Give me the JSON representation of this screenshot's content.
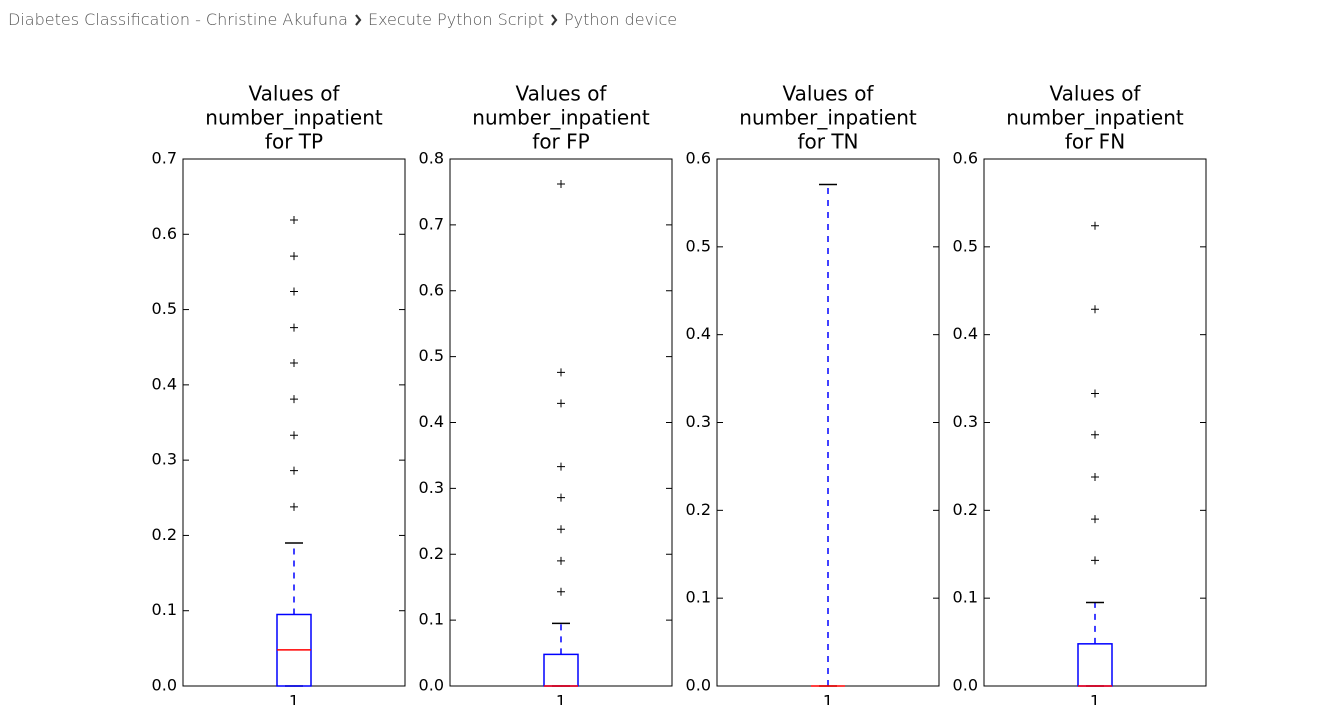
{
  "breadcrumb": [
    "Diabetes Classification - Christine Akufuna",
    "Execute Python Script",
    "Python device"
  ],
  "chart_data": [
    {
      "type": "box",
      "title": [
        "Values of",
        "number_inpatient",
        "for TP"
      ],
      "categories": [
        "1"
      ],
      "boxes": [
        {
          "q1": 0,
          "median": 0.048,
          "q3": 0.095,
          "whisker_low": 0,
          "whisker_high": 0.19,
          "outliers": [
            0.238,
            0.286,
            0.333,
            0.381,
            0.429,
            0.476,
            0.524,
            0.571,
            0.619
          ]
        }
      ],
      "ylim": [
        0,
        0.7
      ],
      "yticks": [
        {
          "value": 0,
          "label": "0.0"
        },
        0.1,
        0.2,
        0.3,
        0.4,
        0.5,
        0.6,
        0.7
      ],
      "box_color": "#0000ff",
      "median_color": "#ff0000",
      "flier_color": "#000000"
    },
    {
      "type": "box",
      "title": [
        "Values of",
        "number_inpatient",
        "for FP"
      ],
      "categories": [
        "1"
      ],
      "boxes": [
        {
          "q1": 0,
          "median": 0,
          "q3": 0.048,
          "whisker_low": 0,
          "whisker_high": 0.095,
          "outliers": [
            0.143,
            0.19,
            0.238,
            0.286,
            0.333,
            0.429,
            0.476,
            0.762
          ]
        }
      ],
      "ylim": [
        0,
        0.8
      ],
      "yticks": [
        {
          "value": 0,
          "label": "0.0"
        },
        0.1,
        0.2,
        0.3,
        0.4,
        0.5,
        0.6,
        0.7,
        0.8
      ],
      "box_color": "#0000ff",
      "median_color": "#ff0000",
      "flier_color": "#000000"
    },
    {
      "type": "box",
      "title": [
        "Values of",
        "number_inpatient",
        "for TN"
      ],
      "categories": [
        "1"
      ],
      "boxes": [
        {
          "q1": 0,
          "median": 0,
          "q3": 0,
          "whisker_low": 0,
          "whisker_high": 0.571,
          "outliers": []
        }
      ],
      "ylim": [
        0,
        0.6
      ],
      "yticks": [
        {
          "value": 0,
          "label": "0.0"
        },
        0.1,
        0.2,
        0.3,
        0.4,
        0.5,
        0.6
      ],
      "box_color": "#0000ff",
      "median_color": "#ff0000",
      "flier_color": "#000000"
    },
    {
      "type": "box",
      "title": [
        "Values of",
        "number_inpatient",
        "for FN"
      ],
      "categories": [
        "1"
      ],
      "boxes": [
        {
          "q1": 0,
          "median": 0,
          "q3": 0.048,
          "whisker_low": 0,
          "whisker_high": 0.095,
          "outliers": [
            0.143,
            0.19,
            0.238,
            0.286,
            0.333,
            0.429,
            0.524
          ]
        }
      ],
      "ylim": [
        0,
        0.6
      ],
      "yticks": [
        {
          "value": 0,
          "label": "0.0"
        },
        0.1,
        0.2,
        0.3,
        0.4,
        0.5,
        0.6
      ],
      "box_color": "#0000ff",
      "median_color": "#ff0000",
      "flier_color": "#000000"
    }
  ]
}
